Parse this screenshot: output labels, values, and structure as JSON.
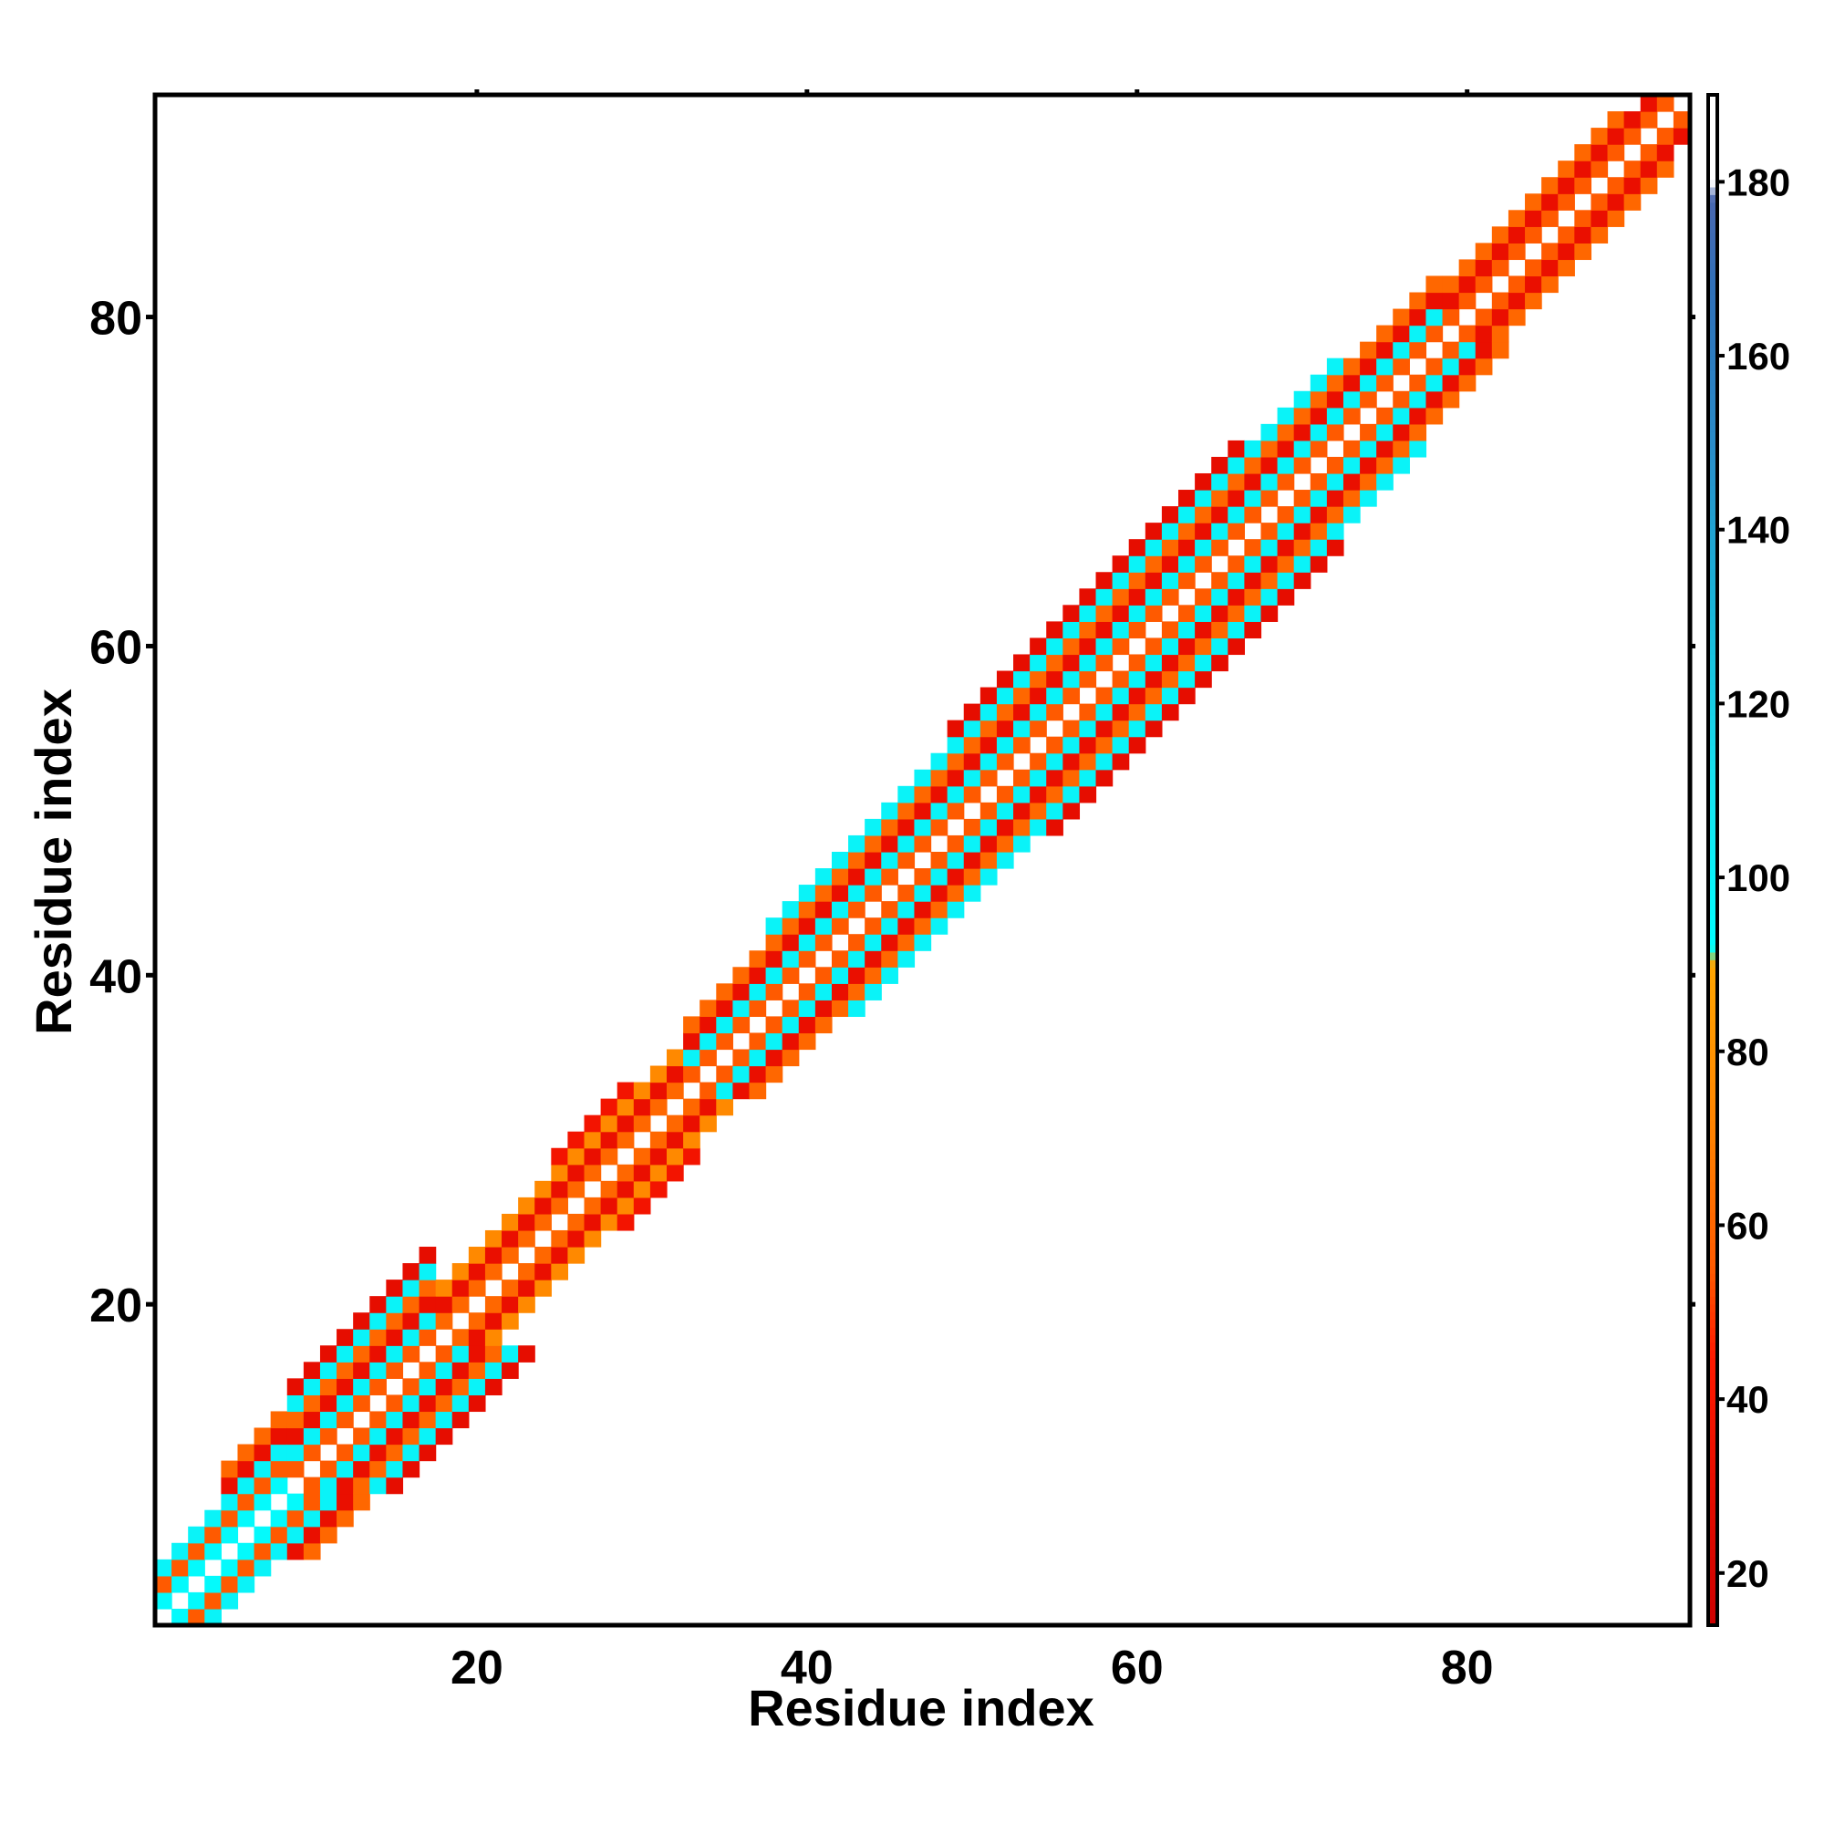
{
  "chart_data": {
    "type": "heatmap",
    "title": "",
    "xlabel": "Residue index",
    "ylabel": "Residue index",
    "xlim": [
      0.5,
      93.5
    ],
    "ylim": [
      0.5,
      93.5
    ],
    "xticks": [
      20,
      40,
      60,
      80
    ],
    "yticks": [
      20,
      40,
      60,
      80
    ],
    "colorbar": {
      "range": [
        14,
        190
      ],
      "ticks": [
        20,
        40,
        60,
        80,
        100,
        120,
        140,
        160,
        180
      ],
      "stops": [
        {
          "value": 14,
          "color": "#cc0000"
        },
        {
          "value": 45,
          "color": "#ff1a00"
        },
        {
          "value": 55,
          "color": "#ff5a00"
        },
        {
          "value": 70,
          "color": "#ff8000"
        },
        {
          "value": 90,
          "color": "#ffa500"
        },
        {
          "value": 92,
          "color": "#00ffff"
        },
        {
          "value": 112,
          "color": "#18e0ee"
        },
        {
          "value": 132,
          "color": "#1ab4d8"
        },
        {
          "value": 150,
          "color": "#2a8cc8"
        },
        {
          "value": 168,
          "color": "#3070b8"
        },
        {
          "value": 178,
          "color": "#4a68b0"
        },
        {
          "value": 180,
          "color": "#ffffff"
        },
        {
          "value": 190,
          "color": "#ffffff"
        }
      ]
    },
    "band_profile": [
      {
        "from": 1,
        "to": 4,
        "halfwidth": 3
      },
      {
        "from": 5,
        "to": 8,
        "halfwidth": 5
      },
      {
        "from": 9,
        "to": 17,
        "halfwidth": 6
      },
      {
        "from": 18,
        "to": 24,
        "halfwidth": 3
      },
      {
        "from": 25,
        "to": 29,
        "halfwidth": 4
      },
      {
        "from": 30,
        "to": 32,
        "halfwidth": 3
      },
      {
        "from": 33,
        "to": 37,
        "halfwidth": 4
      },
      {
        "from": 38,
        "to": 48,
        "halfwidth": 5
      },
      {
        "from": 49,
        "to": 66,
        "halfwidth": 6
      },
      {
        "from": 67,
        "to": 72,
        "halfwidth": 5
      },
      {
        "from": 73,
        "to": 78,
        "halfwidth": 4
      },
      {
        "from": 79,
        "to": 89,
        "halfwidth": 3
      },
      {
        "from": 90,
        "to": 93,
        "halfwidth": 2
      }
    ],
    "band_values": [
      {
        "region": "1-8",
        "offsets": {
          "1": 95,
          "2": 55,
          "3": 100,
          "4": 32,
          "5": 60
        }
      },
      {
        "region": "9-17",
        "offsets": {
          "1": 55,
          "2": 100,
          "3": 32,
          "4": 60,
          "5": 100,
          "6": 30
        }
      },
      {
        "region": "18-32",
        "offsets": {
          "1": 60,
          "2": 32,
          "3": 75,
          "4": 38
        }
      },
      {
        "region": "33-48",
        "offsets": {
          "1": 55,
          "2": 100,
          "3": 32,
          "4": 60,
          "5": 100
        }
      },
      {
        "region": "49-66",
        "offsets": {
          "1": 55,
          "2": 100,
          "3": 32,
          "4": 60,
          "5": 100,
          "6": 30
        }
      },
      {
        "region": "67-78",
        "offsets": {
          "1": 55,
          "2": 100,
          "3": 32,
          "4": 60,
          "5": 100
        }
      },
      {
        "region": "79-93",
        "offsets": {
          "1": 55,
          "2": 32,
          "3": 60
        }
      }
    ],
    "diagonal_value": 190,
    "background_value": 190
  }
}
